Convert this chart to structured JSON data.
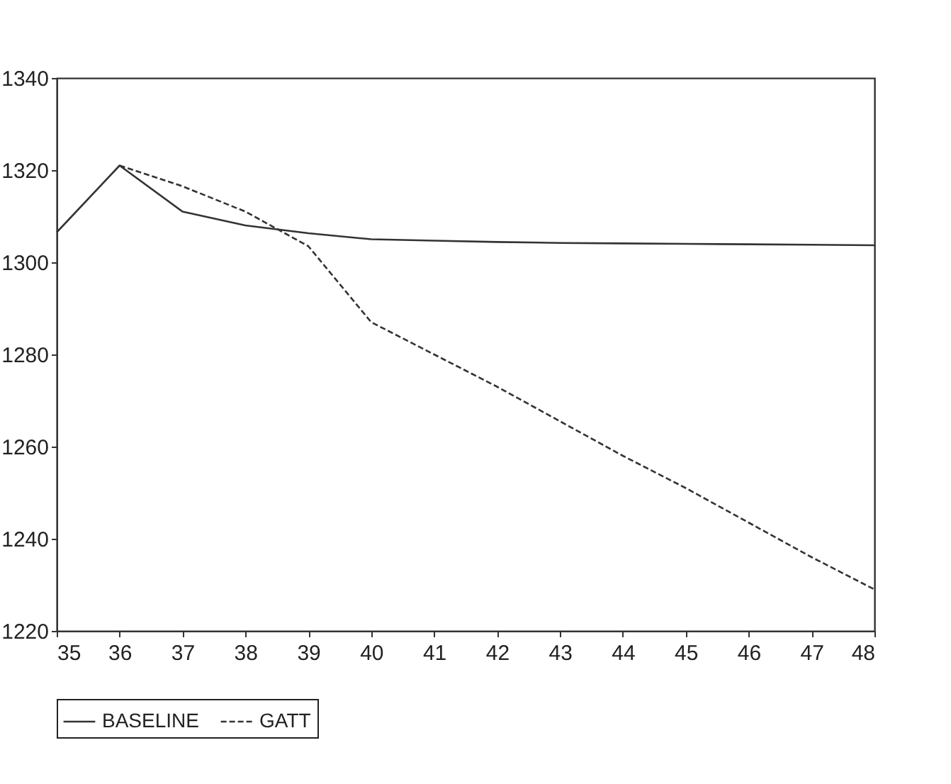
{
  "chart_data": {
    "type": "line",
    "x": [
      35,
      36,
      37,
      38,
      39,
      40,
      41,
      42,
      43,
      44,
      45,
      46,
      47,
      48
    ],
    "series": [
      {
        "name": "BASELINE",
        "color": "#333333",
        "line_style": "solid",
        "values": [
          1306.5,
          1321,
          1311,
          1308,
          1306.3,
          1305,
          1304.7,
          1304.4,
          1304.2,
          1304.1,
          1304,
          1303.9,
          1303.8,
          1303.7
        ]
      },
      {
        "name": "GATT",
        "color": "#333333",
        "line_style": "dashed",
        "values": [
          null,
          1321,
          1316.5,
          1311,
          1303.5,
          1287,
          1280,
          1273,
          1265.5,
          1258,
          1251,
          1243.5,
          1236,
          1229
        ]
      }
    ],
    "xlim": [
      35,
      48
    ],
    "xticks": [
      35,
      36,
      37,
      38,
      39,
      40,
      41,
      42,
      43,
      44,
      45,
      46,
      47,
      48
    ],
    "ylim": [
      1220,
      1340
    ],
    "yticks": [
      1220,
      1240,
      1260,
      1280,
      1300,
      1320,
      1340
    ],
    "grid": false,
    "legend": "bottom",
    "marker": "none"
  }
}
